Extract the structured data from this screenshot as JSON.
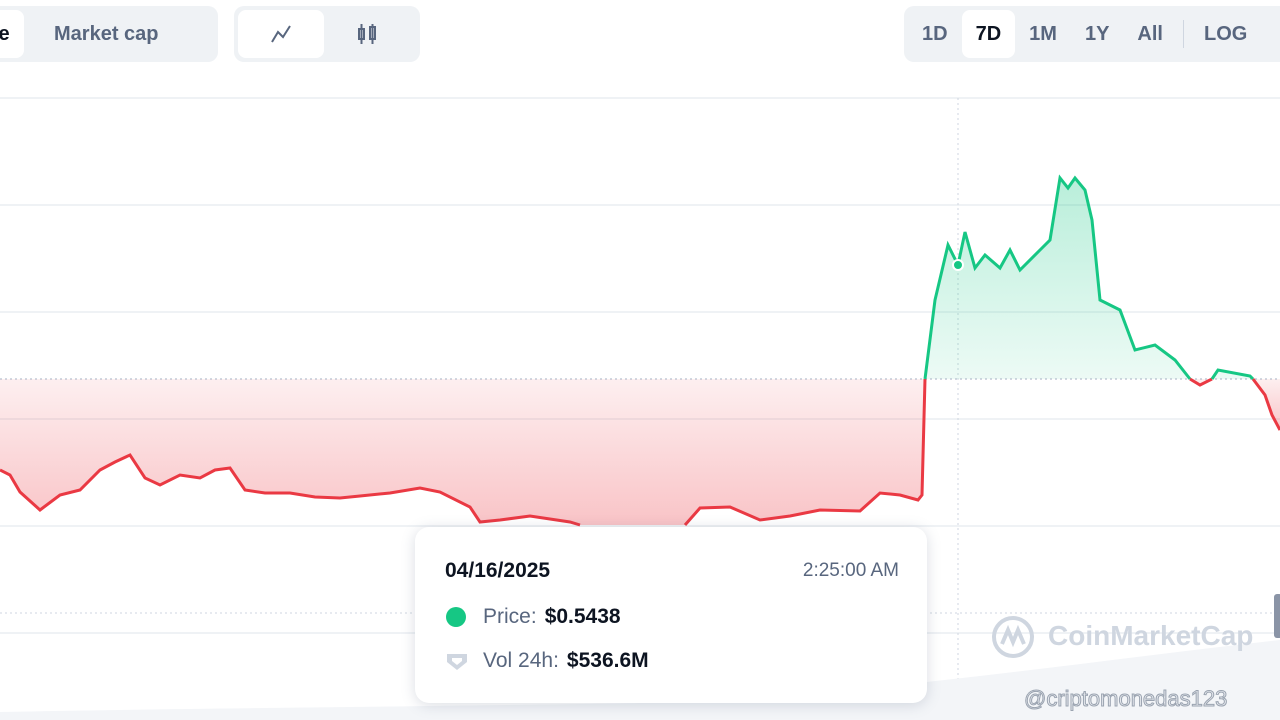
{
  "toolbar": {
    "price_tab": "e",
    "market_cap_tab": "Market cap",
    "ranges": [
      "1D",
      "7D",
      "1M",
      "1Y",
      "All",
      "LOG"
    ]
  },
  "tooltip": {
    "date": "04/16/2025",
    "time": "2:25:00 AM",
    "price_label": "Price:",
    "price": "$0.5438",
    "volume_label": "Vol 24h:",
    "volume": "$536.6M"
  },
  "watermark": "CoinMarketCap",
  "handle": "@criptomonedas123"
}
